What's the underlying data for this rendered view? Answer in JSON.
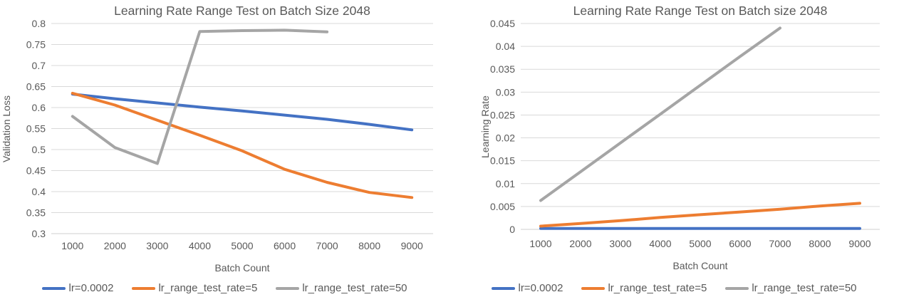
{
  "style": {
    "text_color": "#595959",
    "grid_color": "#D9D9D9",
    "axis_color": "#CFCFCF",
    "background": "#FFFFFF",
    "series_blue": "#4472C4",
    "series_orange": "#ED7D31",
    "series_gray": "#A5A5A5"
  },
  "chart_data": [
    {
      "type": "line",
      "title": "Learning Rate Range Test on Batch Size 2048",
      "xlabel": "Batch Count",
      "ylabel": "Validation Loss",
      "x": [
        1000,
        2000,
        3000,
        4000,
        5000,
        6000,
        7000,
        8000,
        9000
      ],
      "x_tick_labels": [
        "1000",
        "2000",
        "3000",
        "4000",
        "5000",
        "6000",
        "7000",
        "8000",
        "9000"
      ],
      "ylim": [
        0.3,
        0.8
      ],
      "y_ticks": [
        0.3,
        0.35,
        0.4,
        0.45,
        0.5,
        0.55,
        0.6,
        0.65,
        0.7,
        0.75,
        0.8
      ],
      "y_tick_labels": [
        "0.3",
        "0.35",
        "0.4",
        "0.45",
        "0.5",
        "0.55",
        "0.6",
        "0.65",
        "0.7",
        "0.75",
        "0.8"
      ],
      "grid": true,
      "legend_position": "bottom",
      "series": [
        {
          "name": "lr=0.0002",
          "color": "#4472C4",
          "values": [
            0.632,
            0.621,
            0.611,
            0.601,
            0.592,
            0.582,
            0.572,
            0.56,
            0.547
          ]
        },
        {
          "name": "lr_range_test_rate=5",
          "color": "#ED7D31",
          "values": [
            0.634,
            0.606,
            0.57,
            0.534,
            0.497,
            0.453,
            0.422,
            0.398,
            0.386
          ]
        },
        {
          "name": "lr_range_test_rate=50",
          "color": "#A5A5A5",
          "values": [
            0.579,
            0.505,
            0.467,
            0.781,
            0.783,
            0.784,
            0.78,
            null,
            null
          ]
        }
      ]
    },
    {
      "type": "line",
      "title": "Learning Rate Range Test on Batch size 2048",
      "xlabel": "Batch Count",
      "ylabel": "Learning Rate",
      "x": [
        1000,
        2000,
        3000,
        4000,
        5000,
        6000,
        7000,
        8000,
        9000
      ],
      "x_tick_labels": [
        "1000",
        "2000",
        "3000",
        "4000",
        "5000",
        "6000",
        "7000",
        "8000",
        "9000"
      ],
      "ylim": [
        0,
        0.045
      ],
      "y_ticks": [
        0,
        0.005,
        0.01,
        0.015,
        0.02,
        0.025,
        0.03,
        0.035,
        0.04,
        0.045
      ],
      "y_tick_labels": [
        "0",
        "0.005",
        "0.01",
        "0.015",
        "0.02",
        "0.025",
        "0.03",
        "0.035",
        "0.04",
        "0.045"
      ],
      "grid": true,
      "legend_position": "bottom",
      "series": [
        {
          "name": "lr=0.0002",
          "color": "#4472C4",
          "values": [
            0.0002,
            0.0002,
            0.0002,
            0.0002,
            0.0002,
            0.0002,
            0.0002,
            0.0002,
            0.0002
          ]
        },
        {
          "name": "lr_range_test_rate=5",
          "color": "#ED7D31",
          "values": [
            0.0007,
            0.0013,
            0.0019,
            0.0026,
            0.0032,
            0.0038,
            0.0044,
            0.0051,
            0.0057
          ]
        },
        {
          "name": "lr_range_test_rate=50",
          "color": "#A5A5A5",
          "values": [
            0.0063,
            0.0126,
            0.0189,
            0.0252,
            0.0315,
            0.0378,
            0.044,
            null,
            null
          ]
        }
      ]
    }
  ]
}
